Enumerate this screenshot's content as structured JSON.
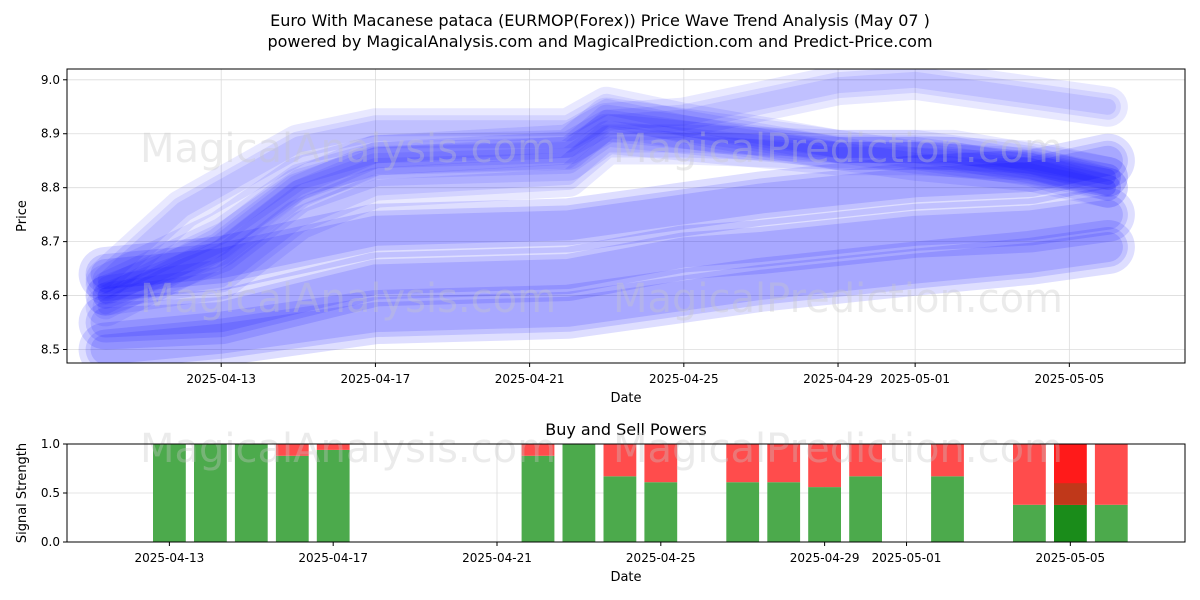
{
  "title": "Euro With Macanese pataca (EURMOP(Forex)) Price Wave Trend Analysis (May 07 )",
  "subtitle": "powered by MagicalAnalysis.com and MagicalPrediction.com and Predict-Price.com",
  "watermarks": [
    "MagicalAnalysis.com",
    "MagicalPrediction.com"
  ],
  "chart_data": [
    {
      "type": "line",
      "title": "",
      "xlabel": "Date",
      "ylabel": "Price",
      "xlim": [
        "2025-04-09",
        "2025-05-08"
      ],
      "ylim": [
        8.475,
        9.02
      ],
      "x_ticks": [
        "2025-04-13",
        "2025-04-17",
        "2025-04-21",
        "2025-04-25",
        "2025-04-29",
        "2025-05-01",
        "2025-05-05"
      ],
      "y_ticks": [
        8.5,
        8.6,
        8.7,
        8.8,
        8.9,
        9.0
      ],
      "grid": true,
      "band_color": "#0000ff",
      "series": [
        {
          "x": [
            "2025-04-10",
            "2025-04-13",
            "2025-04-17",
            "2025-04-22",
            "2025-04-25",
            "2025-04-27",
            "2025-05-01",
            "2025-05-04",
            "2025-05-06"
          ],
          "y": [
            8.64,
            8.66,
            8.72,
            8.73,
            8.76,
            8.78,
            8.81,
            8.82,
            8.85
          ]
        },
        {
          "x": [
            "2025-04-10",
            "2025-04-13",
            "2025-04-17",
            "2025-04-22",
            "2025-04-25",
            "2025-04-27",
            "2025-05-01",
            "2025-05-04",
            "2025-05-06"
          ],
          "y": [
            8.55,
            8.56,
            8.63,
            8.64,
            8.68,
            8.69,
            8.72,
            8.73,
            8.75
          ]
        },
        {
          "x": [
            "2025-04-10",
            "2025-04-13",
            "2025-04-17",
            "2025-04-22",
            "2025-04-25",
            "2025-04-27",
            "2025-05-01",
            "2025-05-04",
            "2025-05-06"
          ],
          "y": [
            8.5,
            8.52,
            8.56,
            8.57,
            8.6,
            8.62,
            8.65,
            8.67,
            8.69
          ]
        },
        {
          "x": [
            "2025-04-10",
            "2025-04-13",
            "2025-04-15",
            "2025-04-17",
            "2025-04-22",
            "2025-04-23",
            "2025-04-25",
            "2025-04-29",
            "2025-05-01",
            "2025-05-04",
            "2025-05-06"
          ],
          "y": [
            8.6,
            8.63,
            8.74,
            8.8,
            8.82,
            8.88,
            8.88,
            8.87,
            8.87,
            8.84,
            8.8
          ]
        },
        {
          "x": [
            "2025-04-10",
            "2025-04-13",
            "2025-04-15",
            "2025-04-17",
            "2025-04-22",
            "2025-04-23",
            "2025-04-25",
            "2025-04-27",
            "2025-04-29",
            "2025-05-01",
            "2025-05-04",
            "2025-05-06"
          ],
          "y": [
            8.62,
            8.72,
            8.82,
            8.86,
            8.88,
            8.92,
            8.93,
            8.96,
            8.99,
            9.0,
            8.97,
            8.95
          ]
        },
        {
          "x": [
            "2025-04-10",
            "2025-04-12",
            "2025-04-15",
            "2025-04-17",
            "2025-04-22",
            "2025-04-23",
            "2025-04-25",
            "2025-04-29",
            "2025-05-01",
            "2025-05-04",
            "2025-05-06"
          ],
          "y": [
            8.63,
            8.76,
            8.88,
            8.91,
            8.91,
            8.95,
            8.92,
            8.87,
            8.85,
            8.83,
            8.8
          ]
        },
        {
          "x": [
            "2025-04-10",
            "2025-04-13",
            "2025-04-15",
            "2025-04-17",
            "2025-04-22",
            "2025-04-23",
            "2025-04-26",
            "2025-04-29",
            "2025-05-01",
            "2025-05-04",
            "2025-05-06"
          ],
          "y": [
            8.6,
            8.68,
            8.79,
            8.84,
            8.85,
            8.9,
            8.88,
            8.86,
            8.86,
            8.85,
            8.82
          ]
        },
        {
          "x": [
            "2025-04-10",
            "2025-04-13",
            "2025-04-15",
            "2025-04-17",
            "2025-04-22",
            "2025-04-23",
            "2025-04-26",
            "2025-04-29",
            "2025-05-02",
            "2025-05-06"
          ],
          "y": [
            8.58,
            8.69,
            8.8,
            8.86,
            8.87,
            8.93,
            8.9,
            8.87,
            8.87,
            8.82
          ]
        }
      ]
    },
    {
      "type": "bar",
      "title": "Buy and Sell Powers",
      "xlabel": "Date",
      "ylabel": "Signal Strength",
      "ylim": [
        0,
        1.0
      ],
      "y_ticks": [
        0.0,
        0.5,
        1.0
      ],
      "x_ticks": [
        "2025-04-13",
        "2025-04-17",
        "2025-04-21",
        "2025-04-25",
        "2025-04-29",
        "2025-05-01",
        "2025-05-05"
      ],
      "grid": true,
      "buy_color": "#4caa4c",
      "sell_color": "#ff4c4c",
      "highlight_buy_color": "#1a8c1a",
      "highlight_sell_color": "#ff1a1a",
      "dates": [
        "2025-04-13",
        "2025-04-14",
        "2025-04-15",
        "2025-04-16",
        "2025-04-17",
        "2025-04-22",
        "2025-04-23",
        "2025-04-24",
        "2025-04-25",
        "2025-04-27",
        "2025-04-28",
        "2025-04-29",
        "2025-04-30",
        "2025-05-02",
        "2025-05-04",
        "2025-05-05",
        "2025-05-06"
      ],
      "buy": [
        1.0,
        1.0,
        1.0,
        0.88,
        0.94,
        0.88,
        1.0,
        0.67,
        0.61,
        0.61,
        0.61,
        0.56,
        0.67,
        0.67,
        0.38,
        0.38,
        0.38
      ],
      "sell": [
        0.0,
        0.0,
        0.0,
        0.12,
        0.06,
        0.12,
        0.0,
        0.33,
        0.39,
        0.39,
        0.39,
        0.44,
        0.33,
        0.33,
        0.62,
        0.62,
        0.62
      ],
      "highlight": "2025-05-05"
    }
  ]
}
